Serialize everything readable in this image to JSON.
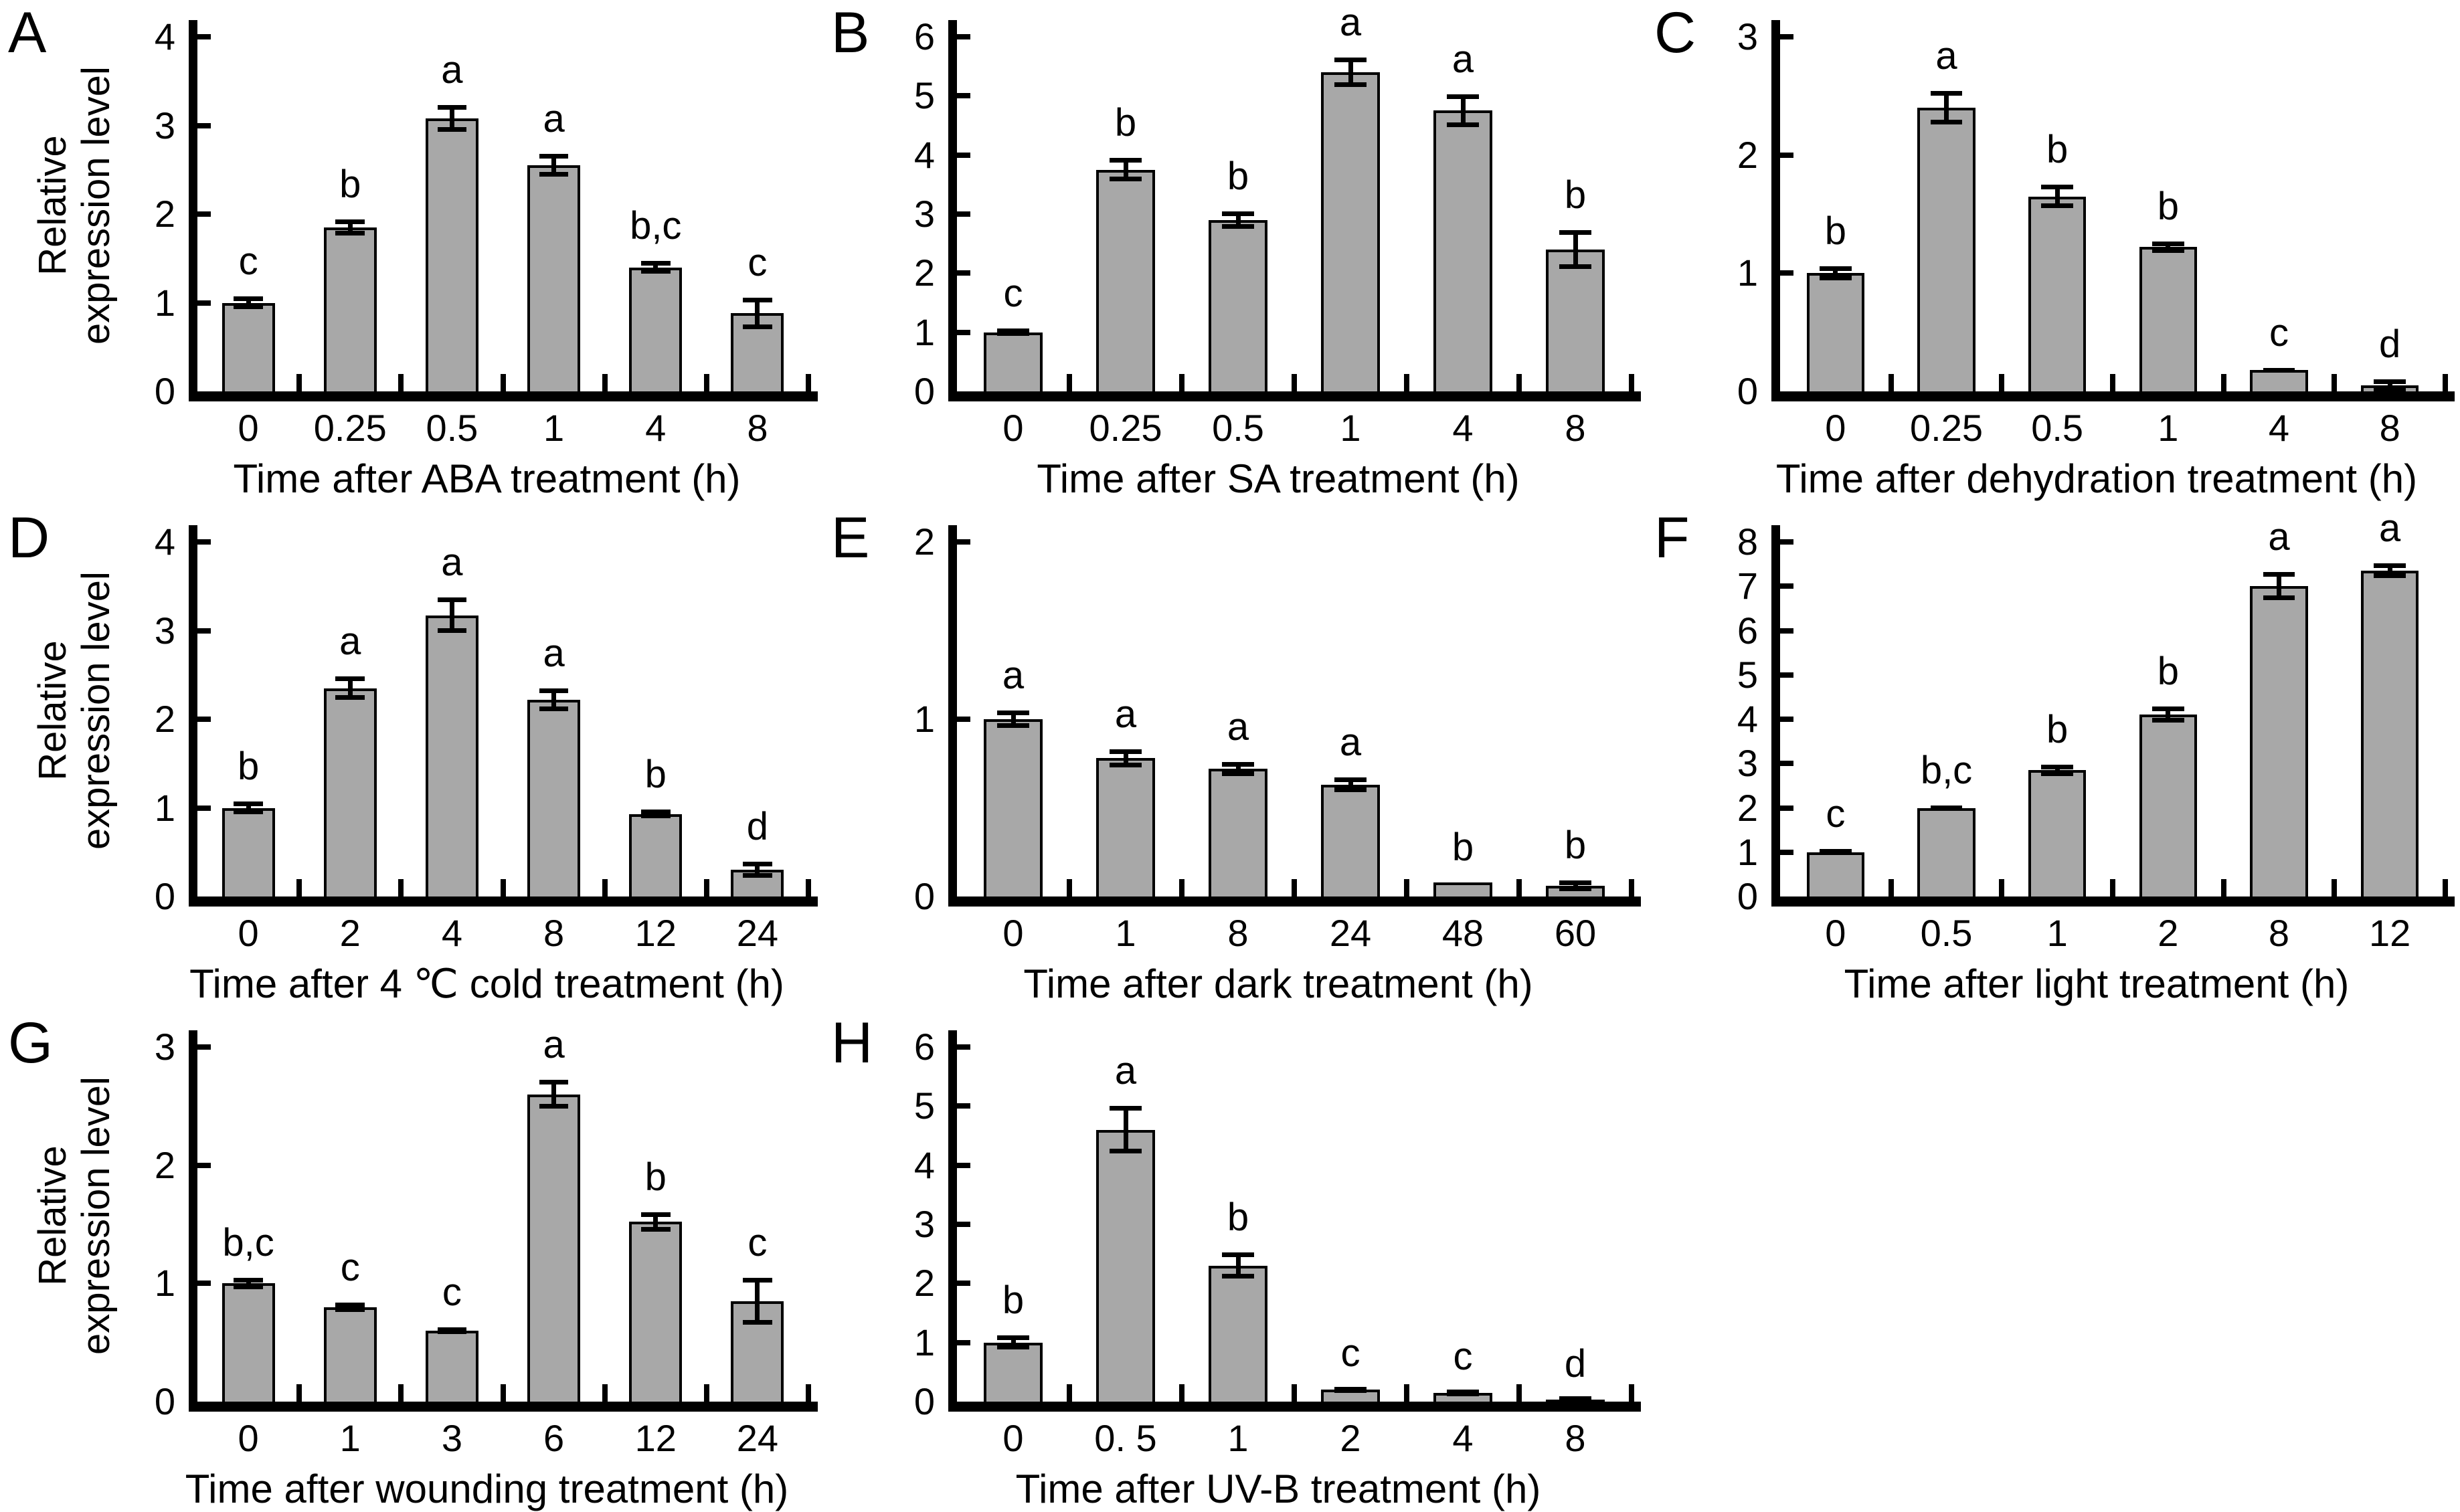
{
  "figure": {
    "description": "Relative expression level bar charts, panels A-H, under eight treatments",
    "background_color": "#ffffff",
    "text_color": "#000000",
    "axis_color": "#000000",
    "bar_color": "#a8a8a8",
    "bar_border_color": "#000000",
    "ylabel_text": "Relative expression level",
    "ylabel_lines": [
      "Relative",
      "expression level"
    ]
  },
  "chart_data": [
    {
      "type": "bar",
      "panel": "A",
      "grid_pos": [
        0,
        0
      ],
      "title": "",
      "xlabel": "Time after ABA treatment (h)",
      "ylabel": "Relative expression level",
      "has_ylabel": true,
      "ylim": [
        0,
        4
      ],
      "yticks": [
        0,
        1,
        2,
        3,
        4
      ],
      "grid": false,
      "legend": null,
      "categories": [
        "0",
        "0.25",
        "0.5",
        "1",
        "4",
        "8"
      ],
      "values": [
        1.0,
        1.85,
        3.08,
        2.55,
        1.4,
        0.88
      ],
      "errors": [
        0.07,
        0.09,
        0.15,
        0.13,
        0.07,
        0.18
      ],
      "sig_letters": [
        "c",
        "b",
        "a",
        "a",
        "b,c",
        "c"
      ]
    },
    {
      "type": "bar",
      "panel": "B",
      "grid_pos": [
        0,
        1
      ],
      "title": "",
      "xlabel": "Time after SA treatment (h)",
      "ylabel": null,
      "has_ylabel": false,
      "ylim": [
        0,
        6
      ],
      "yticks": [
        0,
        1,
        2,
        3,
        4,
        5,
        6
      ],
      "grid": false,
      "legend": null,
      "categories": [
        "0",
        "0.25",
        "0.5",
        "1",
        "4",
        "8"
      ],
      "values": [
        1.0,
        3.75,
        2.9,
        5.4,
        4.75,
        2.4
      ],
      "errors": [
        0.06,
        0.2,
        0.15,
        0.25,
        0.28,
        0.33
      ],
      "sig_letters": [
        "c",
        "b",
        "b",
        "a",
        "a",
        "b"
      ]
    },
    {
      "type": "bar",
      "panel": "C",
      "grid_pos": [
        0,
        2
      ],
      "title": "",
      "xlabel": "Time after dehydration treatment (h)",
      "ylabel": null,
      "has_ylabel": false,
      "ylim": [
        0,
        3
      ],
      "yticks": [
        0,
        1,
        2,
        3
      ],
      "grid": false,
      "legend": null,
      "categories": [
        "0",
        "0.25",
        "0.5",
        "1",
        "4",
        "8"
      ],
      "values": [
        1.0,
        2.4,
        1.65,
        1.22,
        0.18,
        0.05
      ],
      "errors": [
        0.06,
        0.14,
        0.1,
        0.05,
        0.02,
        0.05
      ],
      "sig_letters": [
        "b",
        "a",
        "b",
        "b",
        "c",
        "d"
      ]
    },
    {
      "type": "bar",
      "panel": "D",
      "grid_pos": [
        1,
        0
      ],
      "title": "",
      "xlabel": "Time after 4 ℃ cold treatment (h)",
      "ylabel": "Relative expression level",
      "has_ylabel": true,
      "ylim": [
        0,
        4
      ],
      "yticks": [
        0,
        1,
        2,
        3,
        4
      ],
      "grid": false,
      "legend": null,
      "categories": [
        "0",
        "2",
        "4",
        "8",
        "12",
        "24"
      ],
      "values": [
        1.0,
        2.35,
        3.17,
        2.22,
        0.93,
        0.3
      ],
      "errors": [
        0.07,
        0.13,
        0.2,
        0.13,
        0.05,
        0.09
      ],
      "sig_letters": [
        "b",
        "a",
        "a",
        "a",
        "b",
        "d"
      ]
    },
    {
      "type": "bar",
      "panel": "E",
      "grid_pos": [
        1,
        1
      ],
      "title": "",
      "xlabel": "Time after dark treatment (h)",
      "ylabel": null,
      "has_ylabel": false,
      "ylim": [
        0,
        2
      ],
      "yticks": [
        0,
        1,
        2
      ],
      "grid": false,
      "legend": null,
      "categories": [
        "0",
        "1",
        "8",
        "24",
        "48",
        "60"
      ],
      "values": [
        1.0,
        0.78,
        0.72,
        0.63,
        0.08,
        0.06
      ],
      "errors": [
        0.05,
        0.05,
        0.04,
        0.04,
        0,
        0.03
      ],
      "sig_letters": [
        "a",
        "a",
        "a",
        "a",
        "b",
        "b"
      ]
    },
    {
      "type": "bar",
      "panel": "F",
      "grid_pos": [
        1,
        2
      ],
      "title": "",
      "xlabel": "Time after light treatment (h)",
      "ylabel": null,
      "has_ylabel": false,
      "ylim": [
        0,
        8
      ],
      "yticks": [
        0,
        1,
        2,
        3,
        4,
        5,
        6,
        7,
        8
      ],
      "grid": false,
      "legend": null,
      "categories": [
        "0",
        "0.5",
        "1",
        "2",
        "8",
        "12"
      ],
      "values": [
        1.0,
        2.0,
        2.85,
        4.1,
        7.0,
        7.35
      ],
      "errors": [
        0.07,
        0.06,
        0.13,
        0.18,
        0.32,
        0.17
      ],
      "sig_letters": [
        "c",
        "b,c",
        "b",
        "b",
        "a",
        "a"
      ]
    },
    {
      "type": "bar",
      "panel": "G",
      "grid_pos": [
        2,
        0
      ],
      "title": "",
      "xlabel": "Time after wounding treatment (h)",
      "ylabel": "Relative expression level",
      "has_ylabel": true,
      "ylim": [
        0,
        3
      ],
      "yticks": [
        0,
        1,
        2,
        3
      ],
      "grid": false,
      "legend": null,
      "categories": [
        "0",
        "1",
        "3",
        "6",
        "12",
        "24"
      ],
      "values": [
        1.0,
        0.8,
        0.6,
        2.6,
        1.52,
        0.85
      ],
      "errors": [
        0.05,
        0.04,
        0.03,
        0.12,
        0.08,
        0.2
      ],
      "sig_letters": [
        "b,c",
        "c",
        "c",
        "a",
        "b",
        "c"
      ]
    },
    {
      "type": "bar",
      "panel": "H",
      "grid_pos": [
        2,
        1
      ],
      "title": "",
      "xlabel": "Time after UV-B treatment (h)",
      "ylabel": null,
      "has_ylabel": false,
      "ylim": [
        0,
        6
      ],
      "yticks": [
        0,
        1,
        2,
        3,
        4,
        5,
        6
      ],
      "grid": false,
      "legend": null,
      "categories": [
        "0",
        "0. 5",
        "1",
        "2",
        "4",
        "8"
      ],
      "values": [
        1.0,
        4.6,
        2.3,
        0.2,
        0.15,
        0.03
      ],
      "errors": [
        0.12,
        0.4,
        0.22,
        0.03,
        0.02,
        0.02
      ],
      "sig_letters": [
        "b",
        "a",
        "b",
        "c",
        "c",
        "d"
      ]
    }
  ]
}
